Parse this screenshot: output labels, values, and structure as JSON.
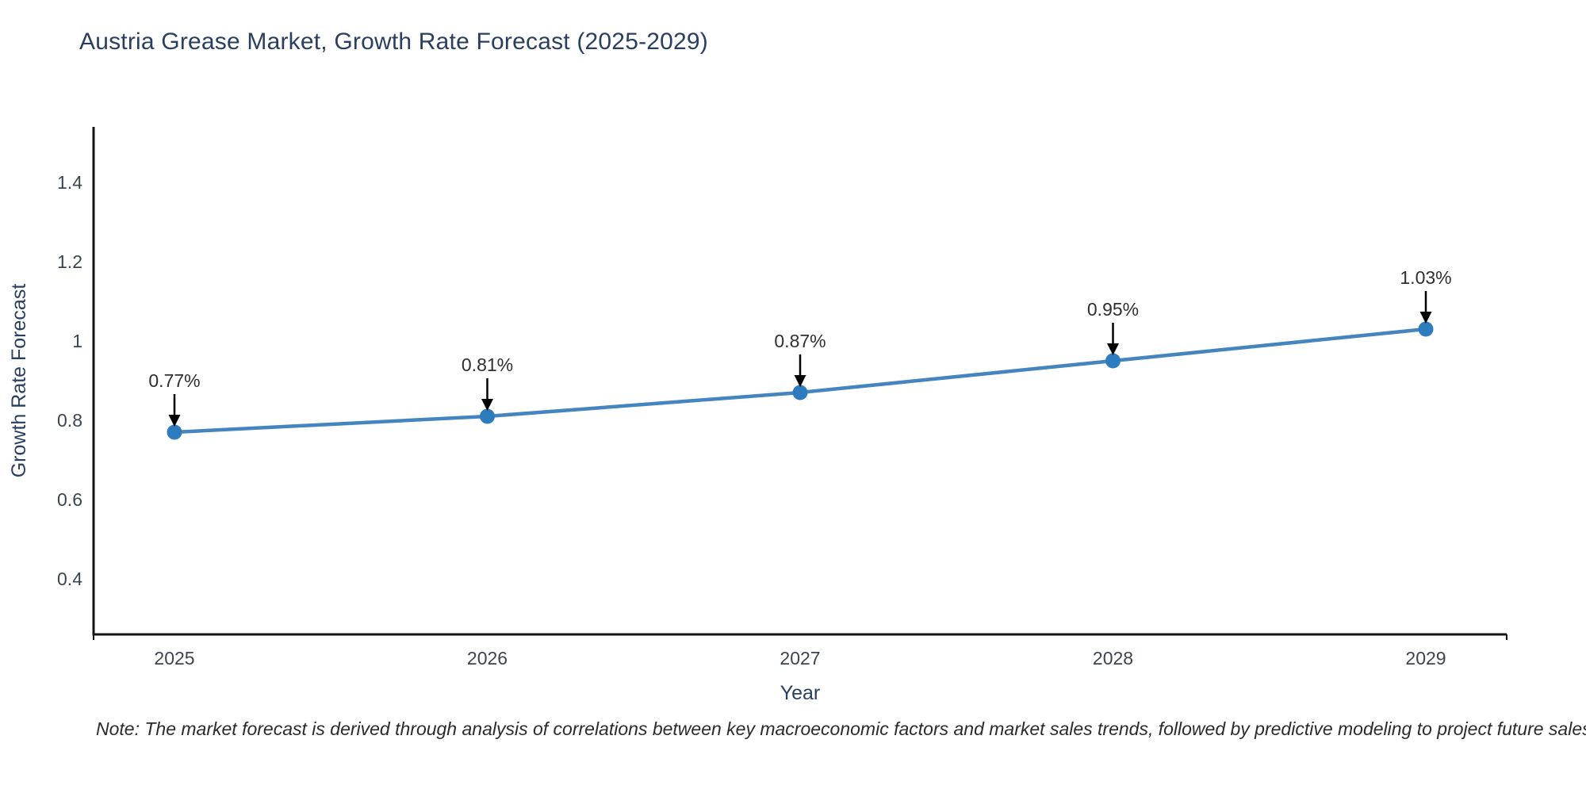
{
  "title": "Austria Grease Market, Growth Rate Forecast (2025-2029)",
  "note": "Note: The market forecast is derived through analysis of correlations between key macroeconomic factors and market sales trends, followed by predictive modeling to project future sales",
  "chart_data": {
    "type": "line",
    "title": "Austria Grease Market, Growth Rate Forecast (2025-2029)",
    "categories": [
      "2025",
      "2026",
      "2027",
      "2028",
      "2029"
    ],
    "series": [
      {
        "name": "Growth Rate Forecast",
        "values": [
          0.77,
          0.81,
          0.87,
          0.95,
          1.03
        ]
      }
    ],
    "point_labels": [
      "0.77%",
      "0.81%",
      "0.87%",
      "0.95%",
      "1.03%"
    ],
    "xlabel": "Year",
    "ylabel": "Growth Rate Forecast",
    "yticks": [
      0.4,
      0.6,
      0.8,
      1,
      1.2,
      1.4
    ],
    "ylim": [
      0.26,
      1.54
    ],
    "grid": false,
    "legend": "none",
    "colors": {
      "line": "#4585bf",
      "marker": "#2e7cbd",
      "axis": "#141414",
      "annotation_text": "#2f2f2f",
      "annotation_arrow": "#000000",
      "title": "#2a3f5f",
      "axis_title": "#2a3f5f",
      "tick_label": "#3d4451",
      "background": "#ffffff"
    }
  }
}
